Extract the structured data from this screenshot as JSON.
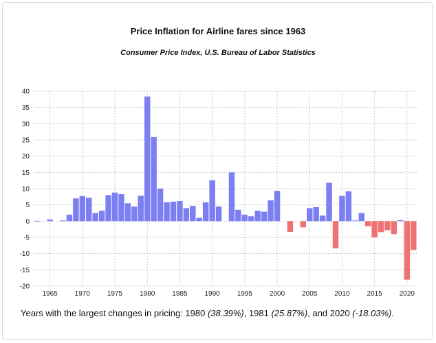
{
  "chart_data": {
    "type": "bar",
    "title": "Price Inflation for Airline fares since 1963",
    "subtitle": "Consumer Price Index, U.S. Bureau of Labor Statistics",
    "xlabel": "",
    "ylabel": "",
    "ylim": [
      -20,
      40
    ],
    "yticks": [
      40,
      35,
      30,
      25,
      20,
      15,
      10,
      5,
      0,
      -5,
      -10,
      -15,
      -20
    ],
    "xlim": [
      1963,
      2021
    ],
    "xticks": [
      1965,
      1970,
      1975,
      1980,
      1985,
      1990,
      1995,
      2000,
      2005,
      2010,
      2015,
      2020
    ],
    "grid": true,
    "colors": {
      "positive": "#7b7ff2",
      "negative": "#ee7272",
      "grid": "#c8c8c8"
    },
    "x": [
      1963,
      1964,
      1965,
      1966,
      1967,
      1968,
      1969,
      1970,
      1971,
      1972,
      1973,
      1974,
      1975,
      1976,
      1977,
      1978,
      1979,
      1980,
      1981,
      1982,
      1983,
      1984,
      1985,
      1986,
      1987,
      1988,
      1989,
      1990,
      1991,
      1992,
      1993,
      1994,
      1995,
      1996,
      1997,
      1998,
      1999,
      2000,
      2001,
      2002,
      2003,
      2004,
      2005,
      2006,
      2007,
      2008,
      2009,
      2010,
      2011,
      2012,
      2013,
      2014,
      2015,
      2016,
      2017,
      2018,
      2019,
      2020,
      2021
    ],
    "values": [
      0.1,
      0.0,
      0.5,
      0.0,
      0.2,
      2.0,
      7.0,
      7.7,
      7.2,
      2.5,
      3.2,
      8.0,
      8.8,
      8.3,
      5.5,
      4.5,
      7.8,
      38.39,
      25.87,
      10.0,
      5.8,
      6.0,
      6.2,
      4.0,
      4.7,
      1.0,
      5.8,
      12.6,
      4.5,
      0.0,
      15.0,
      3.5,
      2.0,
      1.5,
      3.2,
      2.9,
      6.4,
      9.3,
      0.0,
      -3.3,
      0.0,
      -1.9,
      4.0,
      4.3,
      1.7,
      11.8,
      -8.4,
      7.8,
      9.2,
      0.2,
      2.5,
      -1.6,
      -5.0,
      -3.4,
      -2.8,
      -4.0,
      0.3,
      -18.03,
      -8.9
    ]
  },
  "caption": {
    "prefix": "Years with the largest changes in pricing: 1980 ",
    "v1": "(38.39%)",
    "sep1": ", 1981 ",
    "v2": "(25.87%)",
    "sep2": ", and 2020 ",
    "v3": "(-18.03%)",
    "suffix": "."
  }
}
